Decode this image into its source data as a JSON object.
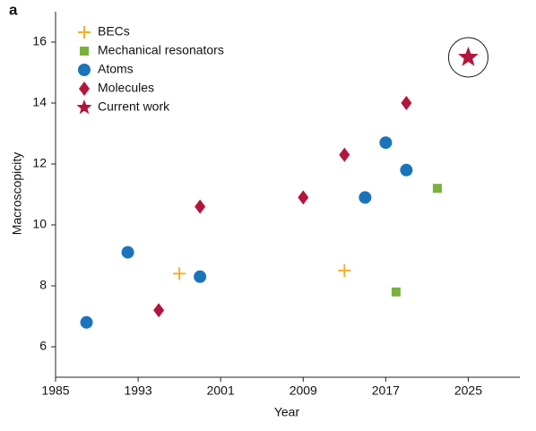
{
  "chart_data": {
    "type": "scatter",
    "title": "a",
    "x_label": "Year",
    "y_label": "Macroscopicity",
    "xlim": [
      1985,
      2030
    ],
    "xticks": [
      1985,
      1993,
      2001,
      2009,
      2017,
      2025
    ],
    "ylim": [
      5,
      17
    ],
    "yticks": [
      6,
      8,
      10,
      12,
      14,
      16
    ],
    "legend": "upper left",
    "grid": false,
    "series": [
      {
        "name": "BECs",
        "color": "#f0b131",
        "marker": "plus",
        "x": [
          1997,
          2013
        ],
        "values": [
          8.4,
          8.5
        ]
      },
      {
        "name": "Mechanical resonators",
        "color": "#7ab13c",
        "marker": "square",
        "x": [
          2018,
          2022
        ],
        "values": [
          7.8,
          11.2
        ]
      },
      {
        "name": "Atoms",
        "color": "#1b74bb",
        "marker": "circle",
        "x": [
          1988,
          1992,
          1999,
          2015,
          2017,
          2019
        ],
        "values": [
          6.8,
          9.1,
          8.3,
          10.9,
          12.7,
          11.8
        ]
      },
      {
        "name": "Molecules",
        "color": "#b3163c",
        "marker": "diamond",
        "x": [
          1995,
          1999,
          2009,
          2013,
          2019
        ],
        "values": [
          7.2,
          10.6,
          10.9,
          12.3,
          14.0
        ]
      },
      {
        "name": "Current work",
        "color": "#b3163c",
        "marker": "star",
        "x": [
          2025
        ],
        "values": [
          15.5
        ]
      }
    ]
  }
}
